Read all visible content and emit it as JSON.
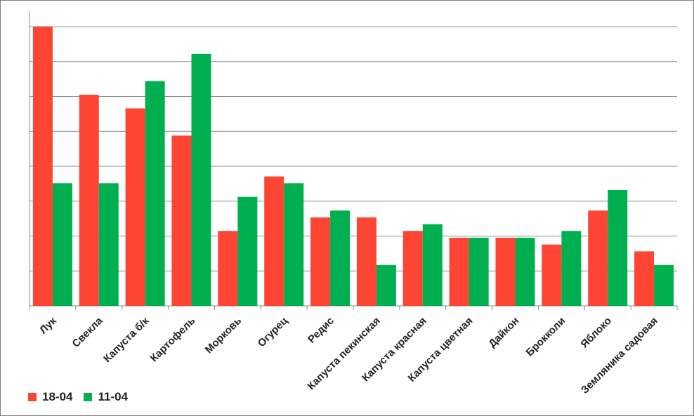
{
  "chart_data": {
    "type": "bar",
    "title": "",
    "xlabel": "",
    "ylabel": "",
    "ylim": [
      0,
      41
    ],
    "grid": true,
    "legend_position": "bottom-left",
    "categories": [
      "Лук",
      "Свекла",
      "Капуста б/к",
      "Картофель",
      "Морковь",
      "Огурец",
      "Редис",
      "Капуста пекинская",
      "Капуста красная",
      "Капуста цветная",
      "Дайкон",
      "Брокколи",
      "Яблоко",
      "Земляника садовая"
    ],
    "series": [
      {
        "name": "18-04",
        "color": "#fe4433",
        "values": [
          41,
          31,
          29,
          25,
          11,
          19,
          13,
          13,
          11,
          10,
          10,
          9,
          14,
          8
        ]
      },
      {
        "name": "11-04",
        "color": "#00b050",
        "values": [
          18,
          18,
          33,
          37,
          16,
          18,
          14,
          6,
          12,
          10,
          10,
          11,
          17,
          6
        ]
      }
    ]
  }
}
